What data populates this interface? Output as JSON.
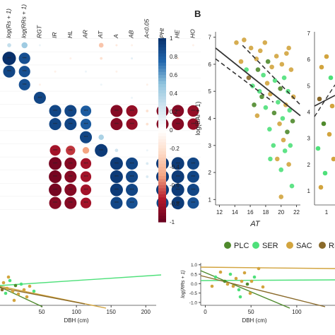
{
  "panel_b_label": "B",
  "chart_data": [
    {
      "type": "heatmap",
      "description": "Correlation matrix (partial, left edge cropped)",
      "columns": [
        "log(Rs + 1)",
        "log(RRs + 1)",
        "RGT",
        "IR",
        "HL",
        "AR",
        "AT",
        "A",
        "AB",
        "A<0.05",
        "PHt",
        "HE",
        "HO"
      ],
      "colorbar": {
        "ticks": [
          "1",
          "0.8",
          "0.6",
          "0.4",
          "0.2",
          "0",
          "-0.2",
          "-0.4",
          "-0.6",
          "-0.8",
          "-1"
        ],
        "min": -1,
        "max": 1,
        "positive_color": "#08306b",
        "negative_color": "#67001f"
      },
      "marker_label": "***",
      "cells": [
        {
          "r": 0,
          "c": 0,
          "v": 0.3
        },
        {
          "r": 0,
          "c": 1,
          "v": 0.45
        },
        {
          "r": 0,
          "c": 2,
          "v": 0.1
        },
        {
          "r": 0,
          "c": 6,
          "v": -0.35
        },
        {
          "r": 0,
          "c": 7,
          "v": -0.15
        },
        {
          "r": 0,
          "c": 8,
          "v": -0.1
        },
        {
          "r": 0,
          "c": 10,
          "v": 0.1
        },
        {
          "r": 0,
          "c": 12,
          "v": -0.1
        },
        {
          "r": 1,
          "c": 0,
          "v": 1.0
        },
        {
          "r": 1,
          "c": 1,
          "v": 0.85
        },
        {
          "r": 1,
          "c": 4,
          "v": -0.1
        },
        {
          "r": 1,
          "c": 6,
          "v": -0.2
        },
        {
          "r": 1,
          "c": 8,
          "v": 0.15
        },
        {
          "r": 1,
          "c": 11,
          "v": -0.15
        },
        {
          "r": 2,
          "c": 0,
          "v": 0.9
        },
        {
          "r": 2,
          "c": 1,
          "v": 0.85
        },
        {
          "r": 2,
          "c": 3,
          "v": -0.1
        },
        {
          "r": 2,
          "c": 5,
          "v": 0.1
        },
        {
          "r": 2,
          "c": 7,
          "v": -0.1
        },
        {
          "r": 3,
          "c": 1,
          "v": 0.85
        },
        {
          "r": 3,
          "c": 2,
          "v": -0.1
        },
        {
          "r": 3,
          "c": 6,
          "v": 0.1
        },
        {
          "r": 3,
          "c": 9,
          "v": -0.1
        },
        {
          "r": 4,
          "c": 2,
          "v": 0.9
        },
        {
          "r": 4,
          "c": 8,
          "v": 0.1
        },
        {
          "r": 5,
          "c": 3,
          "v": 0.9
        },
        {
          "r": 5,
          "c": 4,
          "v": 0.9
        },
        {
          "r": 5,
          "c": 5,
          "v": 0.8
        },
        {
          "r": 5,
          "c": 7,
          "v": -0.9
        },
        {
          "r": 5,
          "c": 8,
          "v": -0.85
        },
        {
          "r": 5,
          "c": 9,
          "v": -0.2
        },
        {
          "r": 5,
          "c": 10,
          "v": -0.9
        },
        {
          "r": 5,
          "c": 11,
          "v": -0.9
        },
        {
          "r": 5,
          "c": 12,
          "v": -0.85
        },
        {
          "r": 6,
          "c": 3,
          "v": 0.9
        },
        {
          "r": 6,
          "c": 4,
          "v": 0.9
        },
        {
          "r": 6,
          "c": 5,
          "v": 0.8
        },
        {
          "r": 6,
          "c": 7,
          "v": -0.9
        },
        {
          "r": 6,
          "c": 8,
          "v": -0.85
        },
        {
          "r": 6,
          "c": 9,
          "v": -0.2
        },
        {
          "r": 6,
          "c": 10,
          "v": -0.9
        },
        {
          "r": 6,
          "c": 11,
          "v": -0.9
        },
        {
          "r": 6,
          "c": 12,
          "v": -0.85
        },
        {
          "r": 7,
          "c": 5,
          "v": 0.9
        },
        {
          "r": 7,
          "c": 6,
          "v": 0.4
        },
        {
          "r": 8,
          "c": 3,
          "v": -0.8
        },
        {
          "r": 8,
          "c": 4,
          "v": -0.7
        },
        {
          "r": 8,
          "c": 5,
          "v": -0.5
        },
        {
          "r": 8,
          "c": 6,
          "v": 0.95
        },
        {
          "r": 8,
          "c": 7,
          "v": 0.25
        },
        {
          "r": 8,
          "c": 9,
          "v": 0.1
        },
        {
          "r": 9,
          "c": 3,
          "v": -0.95
        },
        {
          "r": 9,
          "c": 4,
          "v": -0.9
        },
        {
          "r": 9,
          "c": 5,
          "v": -0.8
        },
        {
          "r": 9,
          "c": 7,
          "v": 0.95
        },
        {
          "r": 9,
          "c": 8,
          "v": 0.9
        },
        {
          "r": 9,
          "c": 9,
          "v": 0.2
        },
        {
          "r": 9,
          "c": 10,
          "v": 0.95
        },
        {
          "r": 9,
          "c": 11,
          "v": 0.95
        },
        {
          "r": 9,
          "c": 12,
          "v": 0.9
        },
        {
          "r": 10,
          "c": 3,
          "v": -0.95
        },
        {
          "r": 10,
          "c": 4,
          "v": -0.9
        },
        {
          "r": 10,
          "c": 5,
          "v": -0.8
        },
        {
          "r": 10,
          "c": 7,
          "v": 0.95
        },
        {
          "r": 10,
          "c": 8,
          "v": 0.9
        },
        {
          "r": 10,
          "c": 9,
          "v": 0.2
        },
        {
          "r": 10,
          "c": 10,
          "v": 0.95
        },
        {
          "r": 10,
          "c": 11,
          "v": 0.95
        },
        {
          "r": 10,
          "c": 12,
          "v": 0.9
        },
        {
          "r": 11,
          "c": 3,
          "v": -0.95
        },
        {
          "r": 11,
          "c": 4,
          "v": -0.9
        },
        {
          "r": 11,
          "c": 5,
          "v": -0.8
        },
        {
          "r": 11,
          "c": 7,
          "v": 0.95
        },
        {
          "r": 11,
          "c": 8,
          "v": 0.9
        },
        {
          "r": 11,
          "c": 10,
          "v": 0.95
        },
        {
          "r": 11,
          "c": 11,
          "v": 0.95
        },
        {
          "r": 11,
          "c": 12,
          "v": 0.9
        },
        {
          "r": 12,
          "c": 3,
          "v": -0.9
        },
        {
          "r": 12,
          "c": 4,
          "v": -0.9
        },
        {
          "r": 12,
          "c": 5,
          "v": -0.8
        },
        {
          "r": 12,
          "c": 7,
          "v": 0.9
        },
        {
          "r": 12,
          "c": 8,
          "v": 0.85
        },
        {
          "r": 12,
          "c": 10,
          "v": 0.9
        },
        {
          "r": 12,
          "c": 11,
          "v": 0.95
        },
        {
          "r": 12,
          "c": 12,
          "v": 0.85
        }
      ]
    },
    {
      "type": "scatter",
      "ylabel": "log(BAI + 1)",
      "xlabel": "AT",
      "xlim": [
        11.5,
        22.5
      ],
      "ylim": [
        0.8,
        7.2
      ],
      "xticks": [
        12,
        14,
        16,
        18,
        20,
        22
      ],
      "yticks": [
        1,
        2,
        3,
        4,
        5,
        6,
        7
      ],
      "colors": {
        "PLC": "#4f8a2c",
        "SER": "#4ee07a",
        "SAC": "#d2a43e",
        "RNI": "#8a6a2a"
      },
      "fit_line": {
        "x": [
          11.5,
          22.5
        ],
        "y": [
          6.6,
          4.1
        ]
      },
      "ci_upper": {
        "x": [
          15.0,
          22.5
        ],
        "y": [
          6.7,
          4.5
        ]
      },
      "ci_lower": {
        "x": [
          11.5,
          19.0
        ],
        "y": [
          6.2,
          4.6
        ]
      },
      "points": [
        {
          "x": 14.2,
          "y": 6.8,
          "g": "SAC"
        },
        {
          "x": 14.8,
          "y": 6.1,
          "g": "SAC"
        },
        {
          "x": 15.2,
          "y": 6.9,
          "g": "SAC"
        },
        {
          "x": 15.8,
          "y": 5.5,
          "g": "RNI"
        },
        {
          "x": 16.1,
          "y": 6.6,
          "g": "SAC"
        },
        {
          "x": 16.3,
          "y": 5.2,
          "g": "SER"
        },
        {
          "x": 16.5,
          "y": 4.5,
          "g": "PLC"
        },
        {
          "x": 16.8,
          "y": 6.2,
          "g": "SAC"
        },
        {
          "x": 17.0,
          "y": 5.8,
          "g": "PLC"
        },
        {
          "x": 17.2,
          "y": 5.0,
          "g": "SER"
        },
        {
          "x": 17.3,
          "y": 6.5,
          "g": "SAC"
        },
        {
          "x": 17.5,
          "y": 4.8,
          "g": "PLC"
        },
        {
          "x": 17.7,
          "y": 5.6,
          "g": "SER"
        },
        {
          "x": 17.9,
          "y": 6.8,
          "g": "SAC"
        },
        {
          "x": 18.0,
          "y": 4.4,
          "g": "SER"
        },
        {
          "x": 18.2,
          "y": 5.3,
          "g": "SAC"
        },
        {
          "x": 18.3,
          "y": 6.1,
          "g": "PLC"
        },
        {
          "x": 18.5,
          "y": 3.6,
          "g": "SER"
        },
        {
          "x": 18.6,
          "y": 4.9,
          "g": "SAC"
        },
        {
          "x": 18.8,
          "y": 5.9,
          "g": "SAC"
        },
        {
          "x": 19.0,
          "y": 3.0,
          "g": "SER"
        },
        {
          "x": 19.1,
          "y": 4.2,
          "g": "PLC"
        },
        {
          "x": 19.2,
          "y": 5.4,
          "g": "SER"
        },
        {
          "x": 19.4,
          "y": 6.3,
          "g": "SAC"
        },
        {
          "x": 19.5,
          "y": 2.5,
          "g": "SAC"
        },
        {
          "x": 19.6,
          "y": 4.6,
          "g": "SER"
        },
        {
          "x": 19.8,
          "y": 3.8,
          "g": "SAC"
        },
        {
          "x": 19.9,
          "y": 5.1,
          "g": "PLC"
        },
        {
          "x": 20.0,
          "y": 2.1,
          "g": "SER"
        },
        {
          "x": 20.1,
          "y": 6.0,
          "g": "SAC"
        },
        {
          "x": 20.2,
          "y": 4.0,
          "g": "SER"
        },
        {
          "x": 20.3,
          "y": 3.2,
          "g": "SAC"
        },
        {
          "x": 20.4,
          "y": 5.5,
          "g": "SER"
        },
        {
          "x": 20.5,
          "y": 2.8,
          "g": "SER"
        },
        {
          "x": 20.6,
          "y": 4.5,
          "g": "SAC"
        },
        {
          "x": 20.7,
          "y": 6.4,
          "g": "SAC"
        },
        {
          "x": 20.8,
          "y": 3.5,
          "g": "PLC"
        },
        {
          "x": 20.9,
          "y": 5.0,
          "g": "SER"
        },
        {
          "x": 21.0,
          "y": 2.3,
          "g": "SAC"
        },
        {
          "x": 21.1,
          "y": 4.3,
          "g": "SER"
        },
        {
          "x": 21.2,
          "y": 3.0,
          "g": "SER"
        },
        {
          "x": 21.3,
          "y": 5.8,
          "g": "SAC"
        },
        {
          "x": 21.4,
          "y": 1.5,
          "g": "SER"
        },
        {
          "x": 21.5,
          "y": 3.9,
          "g": "PLC"
        },
        {
          "x": 21.6,
          "y": 4.8,
          "g": "SAC"
        },
        {
          "x": 20.0,
          "y": 1.1,
          "g": "SAC"
        },
        {
          "x": 21.0,
          "y": 6.6,
          "g": "SAC"
        },
        {
          "x": 18.6,
          "y": 2.5,
          "g": "SER"
        },
        {
          "x": 15.5,
          "y": 5.8,
          "g": "SER"
        },
        {
          "x": 16.9,
          "y": 4.1,
          "g": "SAC"
        }
      ]
    },
    {
      "type": "scatter",
      "description": "Right partial panel (cropped)",
      "yticks": [
        "7",
        "6",
        "5",
        "4",
        "3",
        "2",
        "1"
      ],
      "xticks": [
        "1"
      ]
    },
    {
      "type": "scatter",
      "description": "Bottom-left partial panel",
      "xlabel": "DBH (cm)",
      "xticks": [
        "50",
        "100",
        "150",
        "200"
      ],
      "xlim": [
        0,
        215
      ]
    },
    {
      "type": "scatter",
      "description": "Bottom-right partial panel",
      "xlabel": "DBH (cm)",
      "ylabel": "log(RRs + 1)",
      "xticks": [
        "0",
        "50",
        "100",
        "150"
      ],
      "yticks": [
        "1.0",
        "0.5",
        "0.0",
        "-0.5",
        "-1.0"
      ],
      "xlim": [
        -5,
        165
      ],
      "ylim": [
        -1.15,
        1.1
      ]
    }
  ],
  "legend": [
    {
      "label": "PLC",
      "color": "#4f8a2c"
    },
    {
      "label": "SER",
      "color": "#4ee07a"
    },
    {
      "label": "SAC",
      "color": "#d2a43e"
    },
    {
      "label": "RNI",
      "color": "#8a6a2a"
    }
  ]
}
